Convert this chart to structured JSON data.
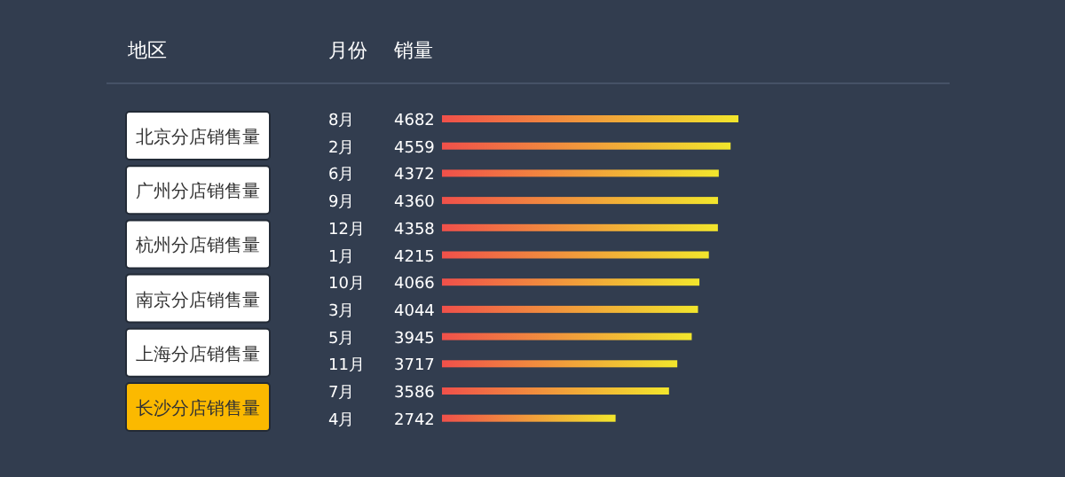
{
  "chart_data": [
    {
      "type": "other",
      "title": "地区",
      "categories": [
        "北京分店销售量",
        "广州分店销售量",
        "杭州分店销售量",
        "南京分店销售量",
        "上海分店销售量",
        "长沙分店销售量"
      ],
      "colors": [
        "#ffffff",
        "#ffffff",
        "#ffffff",
        "#ffffff",
        "#ffffff",
        "#fbb900"
      ]
    },
    {
      "type": "bar",
      "orientation": "horizontal",
      "ylabel": "月份",
      "xlabel": "销量",
      "categories": [
        "8月",
        "2月",
        "6月",
        "9月",
        "12月",
        "1月",
        "10月",
        "3月",
        "5月",
        "11月",
        "7月",
        "4月"
      ],
      "values": [
        4682,
        4559,
        4372,
        4360,
        4358,
        4215,
        4066,
        4044,
        3945,
        3717,
        3586,
        2742
      ],
      "color": "#f2e62c",
      "data_labels": true
    }
  ]
}
